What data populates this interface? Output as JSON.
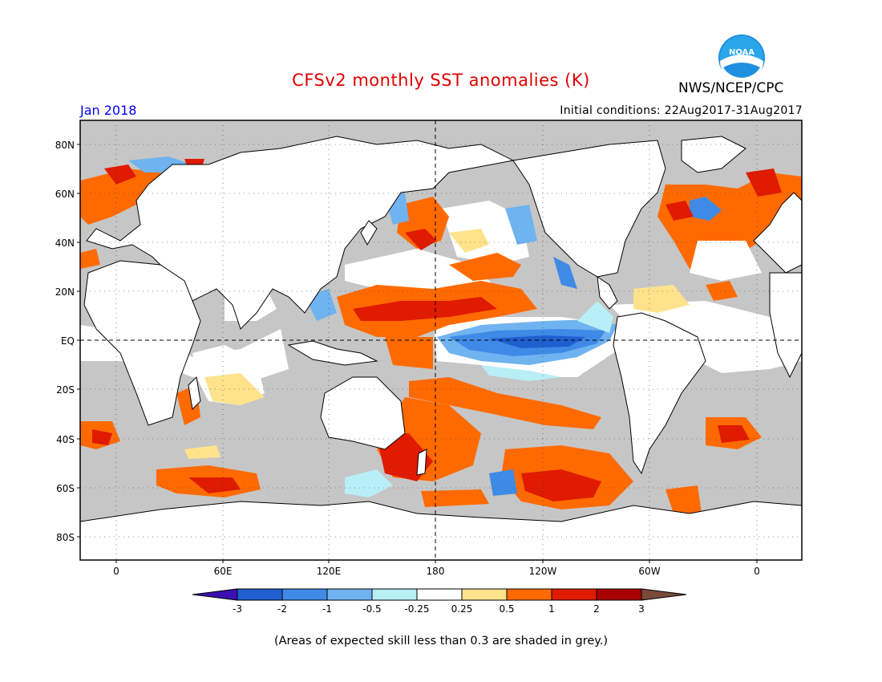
{
  "title": "CFSv2 monthly SST anomalies (K)",
  "agency": "NWS/NCEP/CPC",
  "logo_text": "NOAA",
  "month": "Jan 2018",
  "initial_conditions": "Initial conditions: 22Aug2017-31Aug2017",
  "lat_labels": [
    "80N",
    "60N",
    "40N",
    "20N",
    "EQ",
    "20S",
    "40S",
    "60S",
    "80S"
  ],
  "lon_labels": [
    "0",
    "60E",
    "120E",
    "180",
    "120W",
    "60W",
    "0"
  ],
  "colorbar": {
    "labels": [
      "-3",
      "-2",
      "-1",
      "-0.5",
      "-0.25",
      "0.25",
      "0.5",
      "1",
      "2",
      "3"
    ],
    "colors": [
      "#3b0fb0",
      "#1f5fd0",
      "#3f8ae6",
      "#6fb3f0",
      "#b8eef6",
      "#ffffff",
      "#ffe38c",
      "#ff6a00",
      "#e01b00",
      "#a80000",
      "#7a4a3a"
    ]
  },
  "note": "(Areas of expected skill less than 0.3 are shaded in grey.)",
  "colors": {
    "land": "#ffffff",
    "low_skill_grey": "#c6c6c6",
    "title_red": "#e00000",
    "month_blue": "#0000ff"
  }
}
